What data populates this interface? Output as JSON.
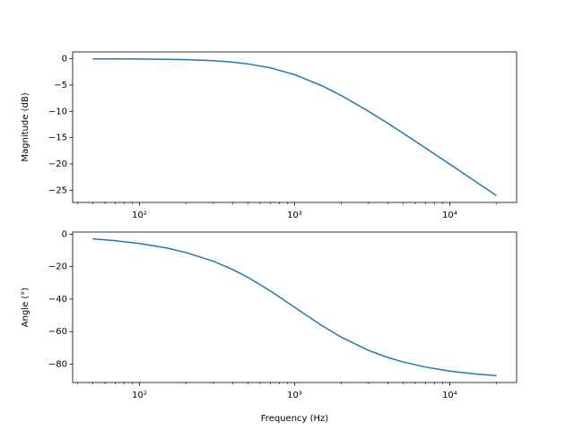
{
  "chart_data": [
    {
      "type": "line",
      "ylabel": "Magnitude (dB)",
      "xscale": "log",
      "color": "#1f77b4",
      "x": [
        50,
        70,
        100,
        150,
        200,
        300,
        400,
        500,
        700,
        1000,
        1500,
        2000,
        3000,
        4000,
        5000,
        7000,
        10000,
        15000,
        20000
      ],
      "values": [
        -0.01,
        -0.02,
        -0.04,
        -0.1,
        -0.17,
        -0.37,
        -0.64,
        -0.97,
        -1.73,
        -3.01,
        -5.12,
        -6.99,
        -10,
        -12.3,
        -14.15,
        -16.99,
        -20.04,
        -23.54,
        -26.03
      ],
      "xlim": [
        37.1,
        26980
      ],
      "ylim": [
        -27.33,
        1.3
      ],
      "xticks": [
        {
          "value": 100,
          "label": "10²"
        },
        {
          "value": 1000,
          "label": "10³"
        },
        {
          "value": 10000,
          "label": "10⁴"
        }
      ],
      "xminorticks": [
        40,
        50,
        60,
        70,
        80,
        90,
        200,
        300,
        400,
        500,
        600,
        700,
        800,
        900,
        2000,
        3000,
        4000,
        5000,
        6000,
        7000,
        8000,
        9000,
        20000
      ],
      "yticks": [
        0,
        {
          "value": -5,
          "label": "−5"
        },
        {
          "value": -10,
          "label": "−10"
        },
        {
          "value": -15,
          "label": "−15"
        },
        {
          "value": -20,
          "label": "−20"
        },
        {
          "value": -25,
          "label": "−25"
        }
      ]
    },
    {
      "type": "line",
      "ylabel": "Angle (°)",
      "xlabel": "Frequency (Hz)",
      "xscale": "log",
      "color": "#1f77b4",
      "x": [
        50,
        70,
        100,
        150,
        200,
        300,
        400,
        500,
        700,
        1000,
        1500,
        2000,
        3000,
        4000,
        5000,
        7000,
        10000,
        15000,
        20000
      ],
      "values": [
        -2.86,
        -4,
        -5.71,
        -8.53,
        -11.31,
        -16.7,
        -21.8,
        -26.57,
        -34.99,
        -45,
        -56.31,
        -63.43,
        -71.57,
        -75.96,
        -78.69,
        -81.87,
        -84.29,
        -86.19,
        -87.14
      ],
      "xlim": [
        37.1,
        26980
      ],
      "ylim": [
        -91.35,
        1.35
      ],
      "xticks": [
        {
          "value": 100,
          "label": "10²"
        },
        {
          "value": 1000,
          "label": "10³"
        },
        {
          "value": 10000,
          "label": "10⁴"
        }
      ],
      "xminorticks": [
        40,
        50,
        60,
        70,
        80,
        90,
        200,
        300,
        400,
        500,
        600,
        700,
        800,
        900,
        2000,
        3000,
        4000,
        5000,
        6000,
        7000,
        8000,
        9000,
        20000
      ],
      "yticks": [
        0,
        {
          "value": -20,
          "label": "−20"
        },
        {
          "value": -40,
          "label": "−40"
        },
        {
          "value": -60,
          "label": "−60"
        },
        {
          "value": -80,
          "label": "−80"
        }
      ]
    }
  ]
}
